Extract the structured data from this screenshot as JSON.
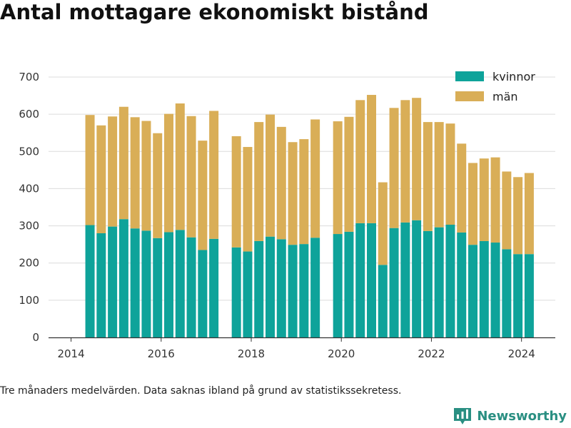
{
  "title": "Antal mottagare ekonomiskt bistånd",
  "note": "Tre månaders medelvärden. Data saknas ibland på grund av statistikssekretess.",
  "brand": "Newsworthy",
  "colors": {
    "kvinnor": "#0ea39a",
    "man": "#d9ae57",
    "brand": "#2a8f82"
  },
  "chart_data": {
    "type": "bar",
    "stacked": true,
    "x_unit": "year",
    "xlim": [
      2013.5,
      2024.75
    ],
    "ylim": [
      0,
      700
    ],
    "yticks": [
      0,
      100,
      200,
      300,
      400,
      500,
      600,
      700
    ],
    "xticks": [
      2014,
      2016,
      2018,
      2020,
      2022,
      2024
    ],
    "grid": true,
    "legend_position": "top-right",
    "series": [
      {
        "name": "kvinnor",
        "color": "#0ea39a"
      },
      {
        "name": "män",
        "color": "#d9ae57"
      }
    ],
    "data": [
      {
        "x": 2014.42,
        "kvinnor": 302,
        "man": 296
      },
      {
        "x": 2014.67,
        "kvinnor": 280,
        "man": 290
      },
      {
        "x": 2014.92,
        "kvinnor": 298,
        "man": 296
      },
      {
        "x": 2015.17,
        "kvinnor": 318,
        "man": 302
      },
      {
        "x": 2015.42,
        "kvinnor": 293,
        "man": 299
      },
      {
        "x": 2015.67,
        "kvinnor": 287,
        "man": 295
      },
      {
        "x": 2015.92,
        "kvinnor": 267,
        "man": 282
      },
      {
        "x": 2016.17,
        "kvinnor": 283,
        "man": 318
      },
      {
        "x": 2016.42,
        "kvinnor": 289,
        "man": 340
      },
      {
        "x": 2016.67,
        "kvinnor": 269,
        "man": 326
      },
      {
        "x": 2016.92,
        "kvinnor": 235,
        "man": 294
      },
      {
        "x": 2017.17,
        "kvinnor": 265,
        "man": 344
      },
      {
        "x": 2017.67,
        "kvinnor": 242,
        "man": 299
      },
      {
        "x": 2017.92,
        "kvinnor": 231,
        "man": 281
      },
      {
        "x": 2018.17,
        "kvinnor": 259,
        "man": 320
      },
      {
        "x": 2018.42,
        "kvinnor": 271,
        "man": 328
      },
      {
        "x": 2018.67,
        "kvinnor": 264,
        "man": 302
      },
      {
        "x": 2018.92,
        "kvinnor": 249,
        "man": 276
      },
      {
        "x": 2019.17,
        "kvinnor": 251,
        "man": 282
      },
      {
        "x": 2019.42,
        "kvinnor": 268,
        "man": 318
      },
      {
        "x": 2019.92,
        "kvinnor": 278,
        "man": 303
      },
      {
        "x": 2020.17,
        "kvinnor": 284,
        "man": 309
      },
      {
        "x": 2020.42,
        "kvinnor": 307,
        "man": 331
      },
      {
        "x": 2020.67,
        "kvinnor": 307,
        "man": 345
      },
      {
        "x": 2020.92,
        "kvinnor": 195,
        "man": 222
      },
      {
        "x": 2021.17,
        "kvinnor": 294,
        "man": 323
      },
      {
        "x": 2021.42,
        "kvinnor": 309,
        "man": 329
      },
      {
        "x": 2021.67,
        "kvinnor": 315,
        "man": 329
      },
      {
        "x": 2021.92,
        "kvinnor": 286,
        "man": 293
      },
      {
        "x": 2022.17,
        "kvinnor": 296,
        "man": 283
      },
      {
        "x": 2022.42,
        "kvinnor": 303,
        "man": 272
      },
      {
        "x": 2022.67,
        "kvinnor": 282,
        "man": 239
      },
      {
        "x": 2022.92,
        "kvinnor": 249,
        "man": 220
      },
      {
        "x": 2023.17,
        "kvinnor": 259,
        "man": 222
      },
      {
        "x": 2023.42,
        "kvinnor": 255,
        "man": 229
      },
      {
        "x": 2023.67,
        "kvinnor": 237,
        "man": 209
      },
      {
        "x": 2023.92,
        "kvinnor": 224,
        "man": 207
      },
      {
        "x": 2024.17,
        "kvinnor": 224,
        "man": 218
      }
    ]
  }
}
